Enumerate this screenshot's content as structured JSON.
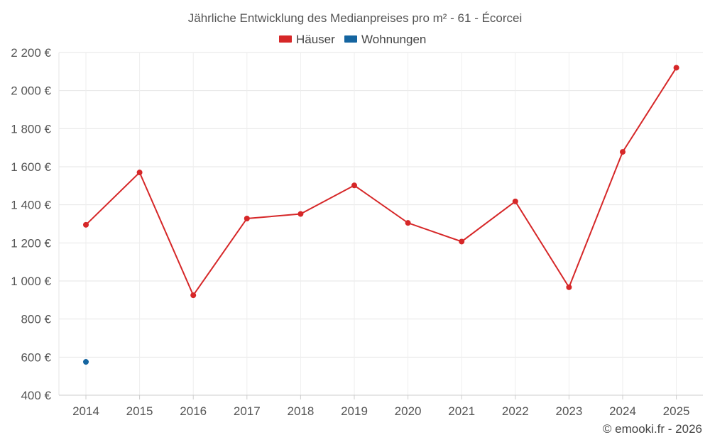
{
  "chart_data": {
    "type": "line",
    "title": "Jährliche Entwicklung des Medianpreises pro m² - 61 - Écorcei",
    "categories": [
      "2014",
      "2015",
      "2016",
      "2017",
      "2018",
      "2019",
      "2020",
      "2021",
      "2022",
      "2023",
      "2024",
      "2025"
    ],
    "series": [
      {
        "name": "Häuser",
        "color": "#d62728",
        "values": [
          1295,
          1570,
          925,
          1328,
          1352,
          1502,
          1305,
          1207,
          1418,
          967,
          1678,
          2120
        ]
      },
      {
        "name": "Wohnungen",
        "color": "#1565a0",
        "values": [
          575,
          null,
          null,
          null,
          null,
          null,
          null,
          null,
          null,
          null,
          null,
          null
        ]
      }
    ],
    "ylim": [
      400,
      2200
    ],
    "yticks": [
      400,
      600,
      800,
      1000,
      1200,
      1400,
      1600,
      1800,
      2000,
      2200
    ],
    "ytick_labels": [
      "400 €",
      "600 €",
      "800 €",
      "1 000 €",
      "1 200 €",
      "1 400 €",
      "1 600 €",
      "1 800 €",
      "2 000 €",
      "2 200 €"
    ],
    "grid": true,
    "legend_position": "top-center",
    "xlabel": "",
    "ylabel": ""
  },
  "credit": "© emooki.fr - 2026"
}
